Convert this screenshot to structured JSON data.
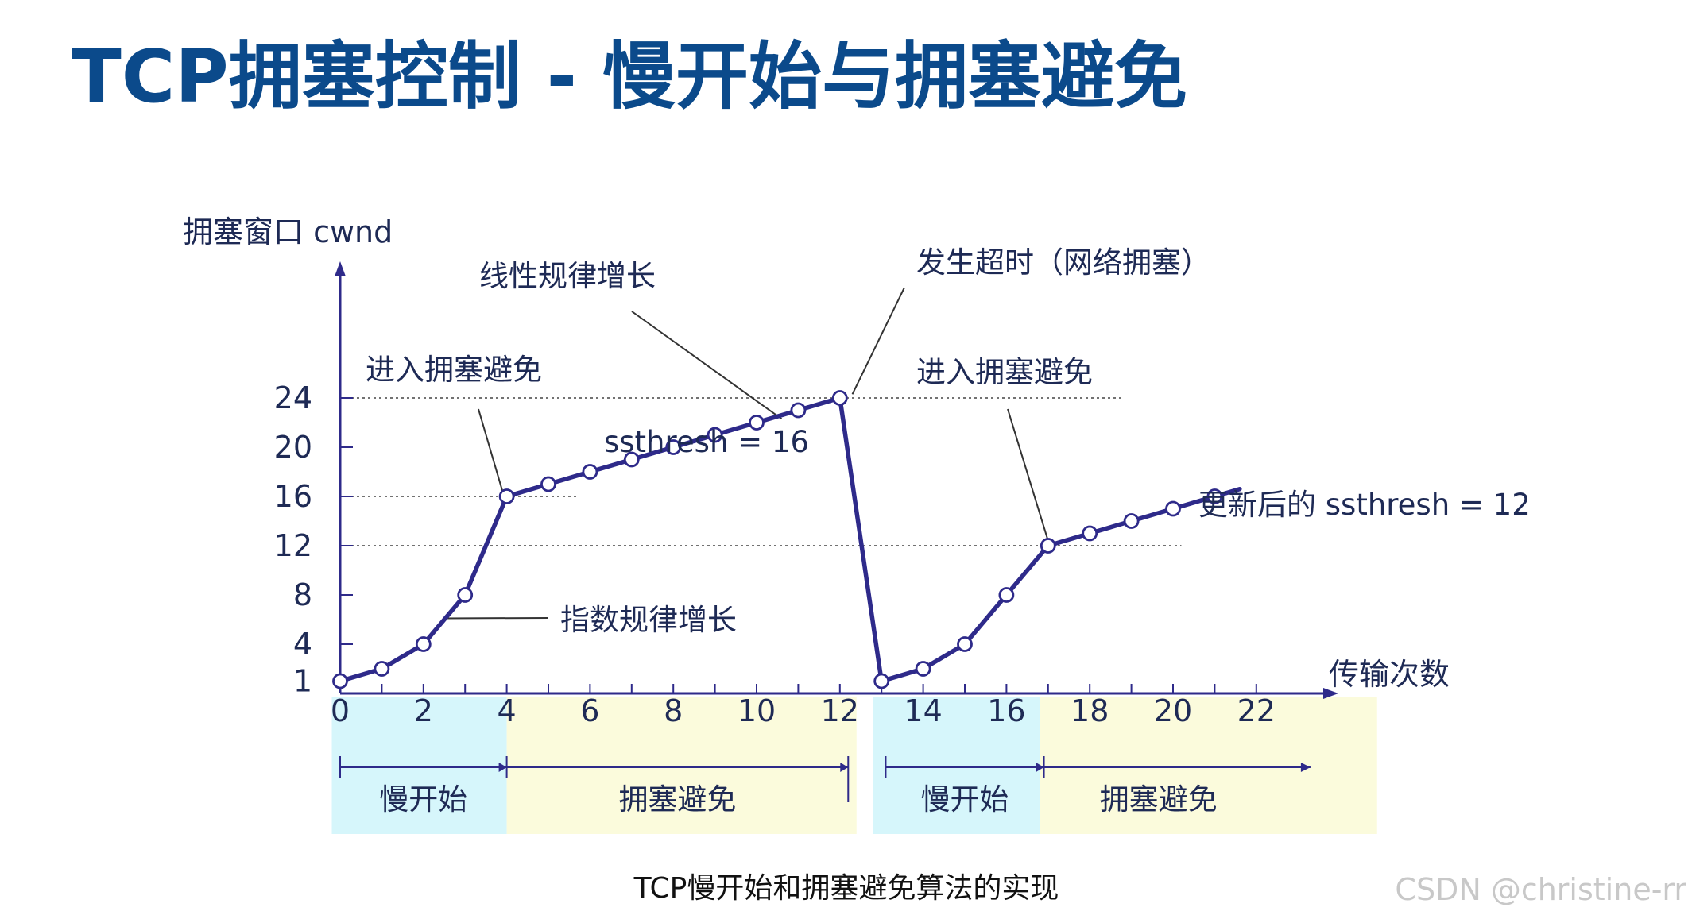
{
  "title": "TCP拥塞控制 - 慢开始与拥塞避免",
  "caption": "TCP慢开始和拥塞避免算法的实现",
  "watermark": "CSDN @christine-rr",
  "colors": {
    "title": "#0b4a8b",
    "line": "#2e2a8a",
    "text": "#1e2a55",
    "slow_start_bg": "#d6f6fb",
    "avoidance_bg": "#fbfbdc"
  },
  "chart_data": {
    "type": "line",
    "xlabel": "传输次数",
    "ylabel": "拥塞窗口 cwnd",
    "xlim": [
      0,
      22
    ],
    "ylim": [
      0,
      24
    ],
    "x_ticks": [
      0,
      2,
      4,
      6,
      8,
      10,
      12,
      14,
      16,
      18,
      20,
      22
    ],
    "y_ticks": [
      1,
      4,
      8,
      12,
      16,
      20,
      24
    ],
    "series": [
      {
        "values": [
          [
            0,
            1
          ],
          [
            1,
            2
          ],
          [
            2,
            4
          ],
          [
            3,
            8
          ],
          [
            4,
            16
          ],
          [
            5,
            17
          ],
          [
            6,
            18
          ],
          [
            7,
            19
          ],
          [
            8,
            20
          ],
          [
            9,
            21
          ],
          [
            10,
            22
          ],
          [
            11,
            23
          ],
          [
            12,
            24
          ],
          [
            13,
            1
          ],
          [
            14,
            2
          ],
          [
            15,
            4
          ],
          [
            16,
            8
          ],
          [
            17,
            12
          ],
          [
            18,
            13
          ],
          [
            19,
            14
          ],
          [
            20,
            15
          ],
          [
            21,
            16
          ]
        ],
        "line_end": [
          21.6,
          16.6
        ]
      }
    ],
    "thresholds": [
      {
        "label": "ssthresh = 16",
        "y": 16
      },
      {
        "label": "更新后的 ssthresh = 12",
        "y": 12
      }
    ],
    "annotations": [
      {
        "text": "线性规律增长"
      },
      {
        "text": "发生超时（网络拥塞）"
      },
      {
        "text": "进入拥塞避免"
      },
      {
        "text": "进入拥塞避免"
      },
      {
        "text": "指数规律增长"
      }
    ],
    "phases": [
      {
        "label": "慢开始",
        "kind": "slow_start"
      },
      {
        "label": "拥塞避免",
        "kind": "avoidance"
      },
      {
        "label": "慢开始",
        "kind": "slow_start"
      },
      {
        "label": "拥塞避免",
        "kind": "avoidance"
      }
    ],
    "grid": false,
    "legend": "none"
  }
}
